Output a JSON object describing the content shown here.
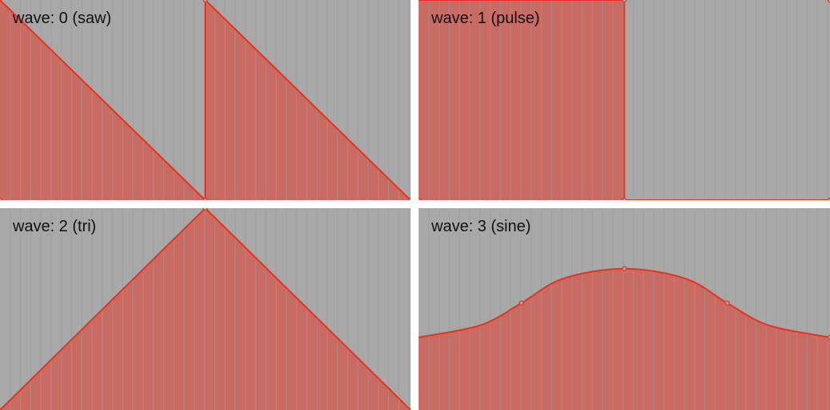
{
  "colors": {
    "background": "#a8a8a8",
    "gridline": "#9b9b9b",
    "fill": "#c96b63",
    "stroke": "#e8321e",
    "separator": "#ffffff"
  },
  "chart_data": [
    {
      "type": "area",
      "label": "wave: 0 (saw)",
      "wave": 0,
      "ylim": [
        0,
        1
      ],
      "xlim": [
        0,
        1
      ],
      "points": [
        [
          0,
          1
        ],
        [
          0.5,
          0
        ],
        [
          0.5,
          1
        ],
        [
          1,
          0
        ]
      ],
      "markers": [
        [
          0,
          0
        ],
        [
          0.5,
          0
        ],
        [
          0.5,
          1
        ],
        [
          1,
          0
        ]
      ],
      "grid": true
    },
    {
      "type": "area",
      "label": "wave: 1 (pulse)",
      "wave": 1,
      "ylim": [
        0,
        1
      ],
      "xlim": [
        0,
        1
      ],
      "points": [
        [
          0,
          1
        ],
        [
          0.5,
          1
        ],
        [
          0.5,
          0
        ],
        [
          1,
          0
        ]
      ],
      "markers": [
        [
          0,
          0
        ],
        [
          0.5,
          1
        ],
        [
          0.5,
          0
        ],
        [
          1,
          0
        ],
        [
          1,
          1
        ]
      ],
      "grid": true
    },
    {
      "type": "area",
      "label": "wave: 2 (tri)",
      "wave": 2,
      "ylim": [
        0,
        1
      ],
      "xlim": [
        0,
        1
      ],
      "points": [
        [
          0,
          0
        ],
        [
          0.5,
          1
        ],
        [
          1,
          0
        ]
      ],
      "markers": [
        [
          0.5,
          1
        ]
      ],
      "grid": true
    },
    {
      "type": "area",
      "label": "wave: 3 (sine)",
      "wave": 3,
      "ylim": [
        0,
        1
      ],
      "xlim": [
        0,
        1
      ],
      "points": [
        [
          0,
          0.36
        ],
        [
          0.15,
          0.42
        ],
        [
          0.25,
          0.53
        ],
        [
          0.35,
          0.65
        ],
        [
          0.5,
          0.7
        ],
        [
          0.65,
          0.65
        ],
        [
          0.75,
          0.53
        ],
        [
          0.85,
          0.42
        ],
        [
          1,
          0.36
        ]
      ],
      "markers": [
        [
          0.25,
          0.53
        ],
        [
          0.5,
          0.7
        ],
        [
          0.75,
          0.53
        ],
        [
          1,
          0.36
        ]
      ],
      "smooth": true,
      "grid": true
    }
  ]
}
